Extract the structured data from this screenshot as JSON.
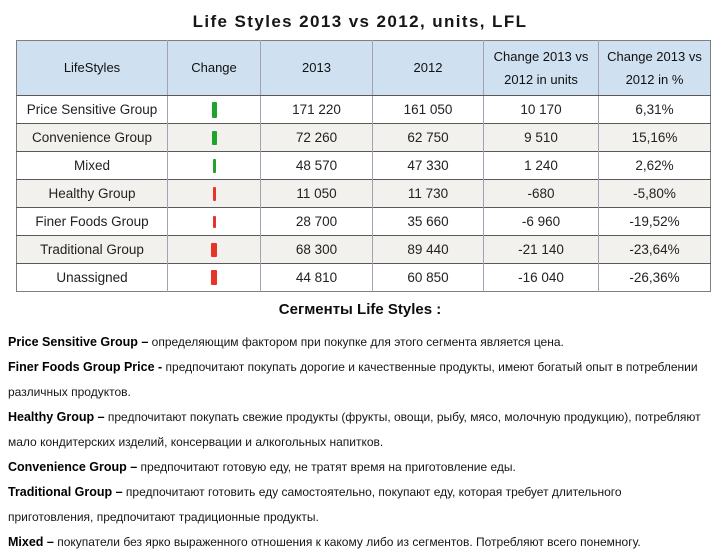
{
  "title": "Life Styles 2013 vs 2012, units, LFL",
  "section_heading": "Сегменты Life Styles :",
  "colors": {
    "header_bg": "#cfe0f1",
    "row_stripe": "#f3f1ee",
    "trend_up_green": "#1fa32b",
    "trend_down_red": "#e73429"
  },
  "table": {
    "headers": [
      "LifeStyles",
      "Change",
      "2013",
      "2012",
      "Change 2013 vs 2012 in units",
      "Change 2013 vs 2012 in %"
    ],
    "rows": [
      {
        "label": "Price Sensitive Group",
        "trend": "up",
        "y2013": "171 220",
        "y2012": "161 050",
        "change_units": "10 170",
        "change_pct": "6,31%",
        "bar": {
          "w": 5,
          "h": 16
        }
      },
      {
        "label": "Convenience Group",
        "trend": "up",
        "y2013": "72 260",
        "y2012": "62 750",
        "change_units": "9 510",
        "change_pct": "15,16%",
        "bar": {
          "w": 5,
          "h": 14
        }
      },
      {
        "label": "Mixed",
        "trend": "up",
        "y2013": "48 570",
        "y2012": "47 330",
        "change_units": "1 240",
        "change_pct": "2,62%",
        "bar": {
          "w": 3,
          "h": 14
        }
      },
      {
        "label": "Healthy Group",
        "trend": "down",
        "y2013": "11 050",
        "y2012": "11 730",
        "change_units": "-680",
        "change_pct": "-5,80%",
        "bar": {
          "w": 3,
          "h": 14
        }
      },
      {
        "label": "Finer Foods Group",
        "trend": "down",
        "y2013": "28 700",
        "y2012": "35 660",
        "change_units": "-6 960",
        "change_pct": "-19,52%",
        "bar": {
          "w": 3,
          "h": 12
        }
      },
      {
        "label": "Traditional Group",
        "trend": "down",
        "y2013": "68 300",
        "y2012": "89 440",
        "change_units": "-21 140",
        "change_pct": "-23,64%",
        "bar": {
          "w": 6,
          "h": 14
        }
      },
      {
        "label": "Unassigned",
        "trend": "down",
        "y2013": "44 810",
        "y2012": "60 850",
        "change_units": "-16 040",
        "change_pct": "-26,36%",
        "bar": {
          "w": 6,
          "h": 15
        }
      }
    ]
  },
  "descriptions": [
    {
      "lead": "Price Sensitive Group –",
      "text": "определяющим фактором при покупке для этого сегмента является цена."
    },
    {
      "lead": "Finer Foods Group Price -",
      "text": "предпочитают покупать дорогие и качественные продукты, имеют богатый опыт в потреблении различных продуктов."
    },
    {
      "lead": "Healthy Group –",
      "text": "предпочитают покупать свежие продукты (фрукты, овощи, рыбу, мясо, молочную продукцию), потребляют мало кондитерских изделий, консервации и алкогольных напитков."
    },
    {
      "lead": "Convenience Group –",
      "text": "предпочитают готовую еду, не тратят время на приготовление еды."
    },
    {
      "lead": "Traditional Group –",
      "text": "предпочитают готовить еду самостоятельно, покупают еду, которая требует длительного приготовления, предпочитают традиционные продукты."
    },
    {
      "lead": "Mixed –",
      "text": "покупатели без ярко выраженного отношения  к какому либо из сегментов.  Потребляют всего понемногу."
    }
  ]
}
